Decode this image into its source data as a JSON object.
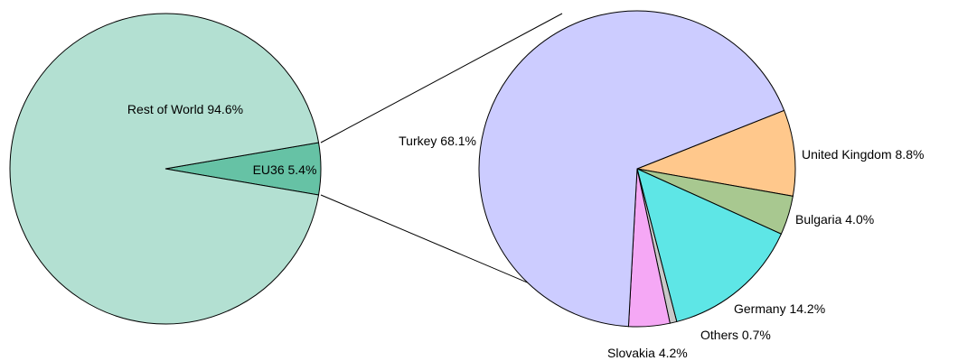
{
  "chart_data": [
    {
      "type": "pie",
      "categories": [
        "EU36",
        "Rest of World"
      ],
      "values": [
        5.4,
        94.6
      ],
      "value_labels": [
        "5.4%",
        "94.6%"
      ],
      "colors": [
        "#66c2a5",
        "#b3e0d2"
      ]
    },
    {
      "type": "pie",
      "categories": [
        "United Kingdom",
        "Bulgaria",
        "Germany",
        "Others",
        "Slovakia",
        "Turkey"
      ],
      "values": [
        8.8,
        4.0,
        14.2,
        0.7,
        4.2,
        68.1
      ],
      "value_labels": [
        "8.8%",
        "4.0%",
        "14.2%",
        "0.7%",
        "4.2%",
        "68.1%"
      ],
      "colors": [
        "#ffc88c",
        "#a8c890",
        "#5ee6e6",
        "#c8c8c8",
        "#f5a8f5",
        "#ccccff"
      ]
    }
  ]
}
